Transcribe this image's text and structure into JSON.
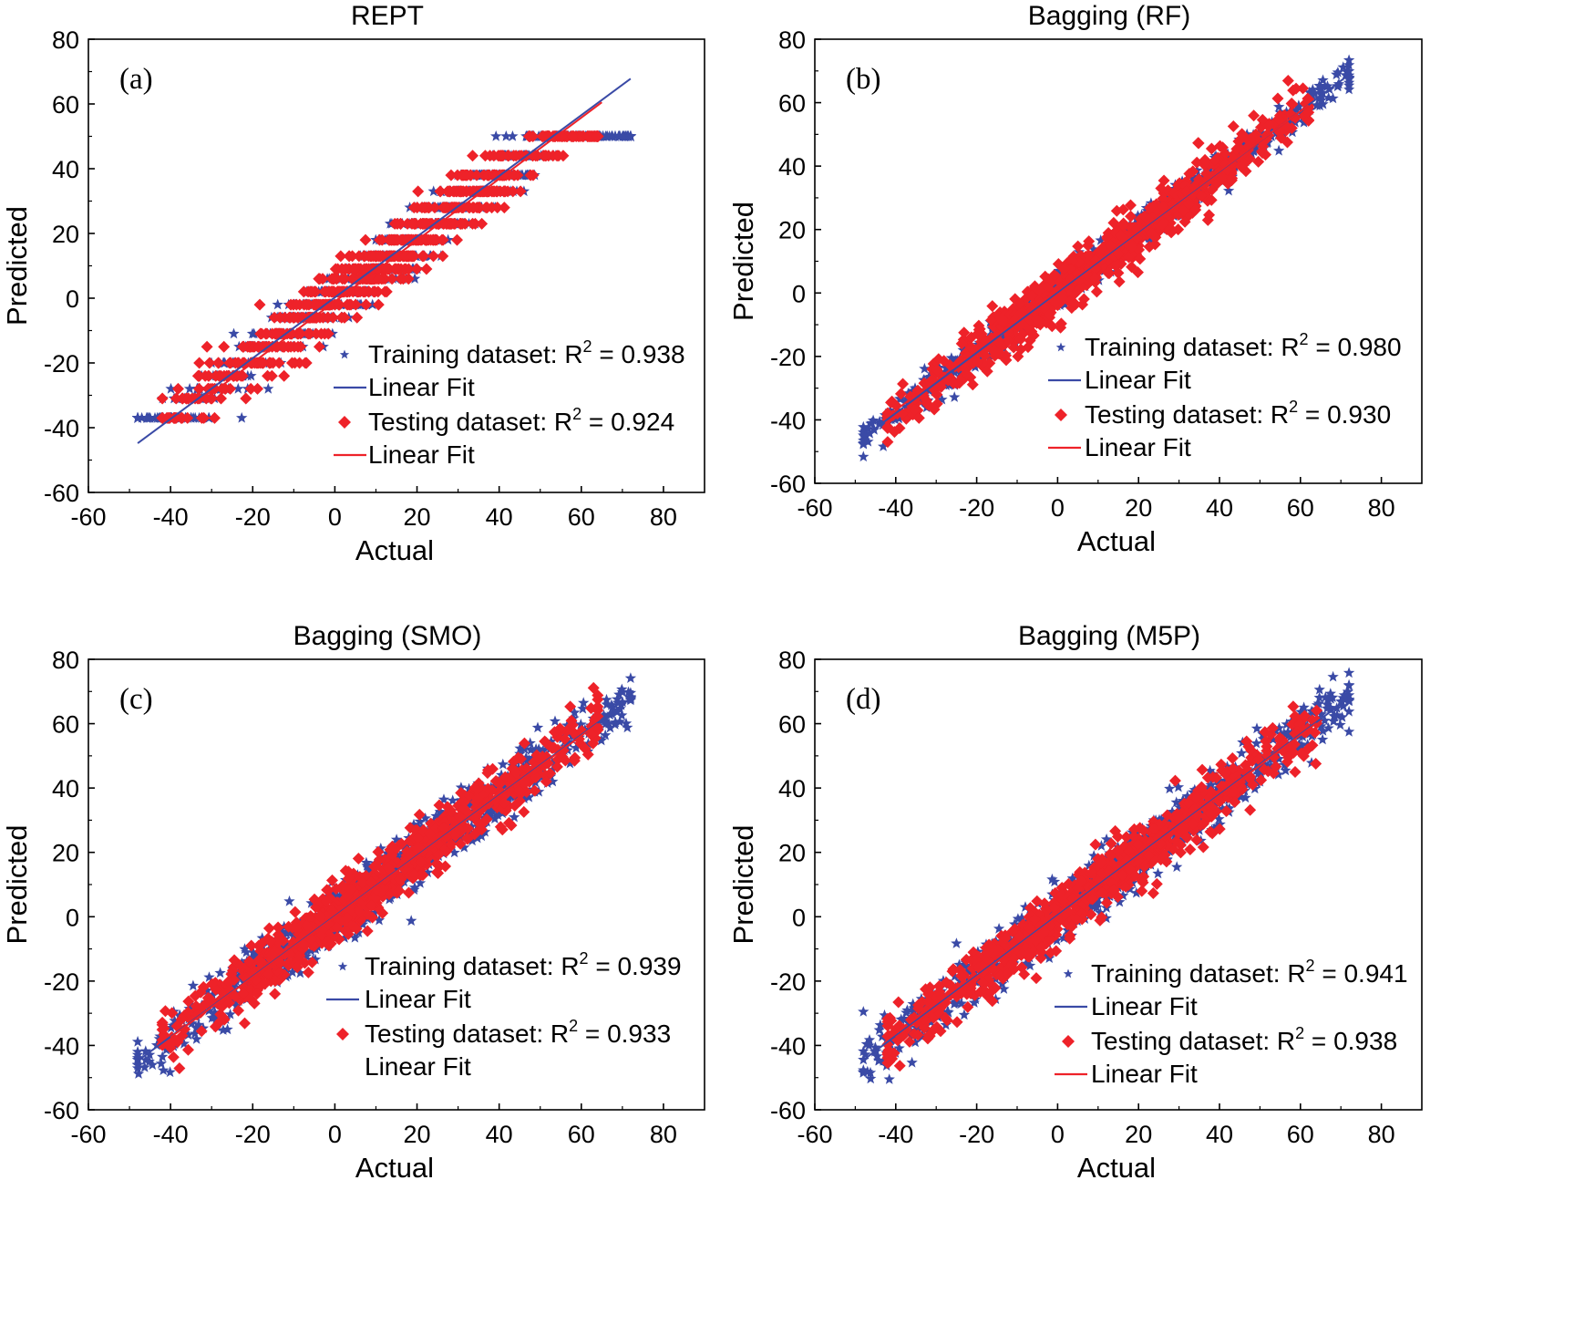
{
  "chart_data": [
    {
      "type": "scatter",
      "panel_label": "(a)",
      "title": "REPT",
      "xlabel": "Actual",
      "ylabel": "Predicted",
      "xlim": [
        -60,
        90
      ],
      "ylim": [
        -60,
        80
      ],
      "xticks": [
        -60,
        -40,
        -20,
        0,
        20,
        40,
        60,
        80
      ],
      "yticks": [
        -60,
        -40,
        -20,
        0,
        20,
        40,
        60,
        80
      ],
      "legend_position": "lower-right",
      "series": [
        {
          "name": "Training dataset",
          "r2_text": "R",
          "r2_exp": "2",
          "r2_value": " = 0.938",
          "marker": "star",
          "color": "#3a4aa6",
          "x_range": [
            -48,
            72
          ],
          "spread": 4.5,
          "quantized": true
        },
        {
          "name": "Linear Fit",
          "type": "line",
          "color": "#3a4aa6",
          "x": [
            -48,
            72
          ],
          "y": [
            -44.8,
            67.8
          ]
        },
        {
          "name": "Testing dataset",
          "r2_text": "R",
          "r2_exp": "2",
          "r2_value": " = 0.924",
          "marker": "diamond",
          "color": "#ee2229",
          "x_range": [
            -42,
            64
          ],
          "spread": 4.5,
          "quantized": true
        },
        {
          "name": "Linear Fit",
          "type": "line",
          "color": "#ee2229",
          "x": [
            -30,
            65
          ],
          "y": [
            -29.4,
            60.5
          ]
        }
      ]
    },
    {
      "type": "scatter",
      "panel_label": "(b)",
      "title": "Bagging (RF)",
      "xlabel": "Actual",
      "ylabel": "Predicted",
      "xlim": [
        -60,
        90
      ],
      "ylim": [
        -60,
        80
      ],
      "xticks": [
        -60,
        -40,
        -20,
        0,
        20,
        40,
        60,
        80
      ],
      "yticks": [
        -60,
        -40,
        -20,
        0,
        20,
        40,
        60,
        80
      ],
      "legend_position": "lower-right",
      "series": [
        {
          "name": "Training dataset",
          "r2_text": "R",
          "r2_exp": "2",
          "r2_value": " = 0.980",
          "marker": "star",
          "color": "#3a4aa6",
          "x_range": [
            -48,
            72
          ],
          "spread": 2.5,
          "quantized": false
        },
        {
          "name": "Linear Fit",
          "type": "line",
          "color": "#3a4aa6",
          "x": [
            -48,
            72
          ],
          "y": [
            -45.5,
            68.8
          ]
        },
        {
          "name": "Testing dataset",
          "r2_text": "R",
          "r2_exp": "2",
          "r2_value": " = 0.930",
          "marker": "diamond",
          "color": "#ee2229",
          "x_range": [
            -42,
            62
          ],
          "spread": 4.0,
          "quantized": false
        },
        {
          "name": "Linear Fit",
          "type": "line",
          "color": "#ee2229",
          "x": [
            -40,
            62
          ],
          "y": [
            -36.9,
            59.2
          ]
        }
      ]
    },
    {
      "type": "scatter",
      "panel_label": "(c)",
      "title": "Bagging (SMO)",
      "xlabel": "Actual",
      "ylabel": "Predicted",
      "xlim": [
        -60,
        90
      ],
      "ylim": [
        -60,
        80
      ],
      "xticks": [
        -60,
        -40,
        -20,
        0,
        20,
        40,
        60,
        80
      ],
      "yticks": [
        -60,
        -40,
        -20,
        0,
        20,
        40,
        60,
        80
      ],
      "legend_position": "lower-right",
      "series": [
        {
          "name": "Training dataset",
          "r2_text": "R",
          "r2_exp": "2",
          "r2_value": " = 0.939",
          "marker": "star",
          "color": "#3a4aa6",
          "x_range": [
            -48,
            72
          ],
          "spread": 4.5,
          "quantized": false
        },
        {
          "name": "Linear Fit",
          "type": "line",
          "color": "#3a4aa6",
          "x": [
            -48,
            72
          ],
          "y": [
            -44.8,
            67.8
          ]
        },
        {
          "name": "Testing dataset",
          "r2_text": "R",
          "r2_exp": "2",
          "r2_value": " = 0.933",
          "marker": "diamond",
          "color": "#ee2229",
          "x_range": [
            -42,
            64
          ],
          "spread": 4.5,
          "quantized": false
        },
        {
          "name": "Linear Fit",
          "type": "line",
          "color": "#ee2229",
          "x": [
            -40,
            64
          ],
          "y": [
            -37.5,
            60.0
          ]
        }
      ]
    },
    {
      "type": "scatter",
      "panel_label": "(d)",
      "title": "Bagging (M5P)",
      "xlabel": "Actual",
      "ylabel": "Predicted",
      "xlim": [
        -60,
        90
      ],
      "ylim": [
        -60,
        80
      ],
      "xticks": [
        -60,
        -40,
        -20,
        0,
        20,
        40,
        60,
        80
      ],
      "yticks": [
        -60,
        -40,
        -20,
        0,
        20,
        40,
        60,
        80
      ],
      "legend_position": "lower-right",
      "series": [
        {
          "name": "Training dataset",
          "r2_text": "R",
          "r2_exp": "2",
          "r2_value": " = 0.941",
          "marker": "star",
          "color": "#3a4aa6",
          "x_range": [
            -48,
            72
          ],
          "spread": 4.5,
          "quantized": false
        },
        {
          "name": "Linear Fit",
          "type": "line",
          "color": "#3a4aa6",
          "x": [
            -48,
            72
          ],
          "y": [
            -44.5,
            68.0
          ]
        },
        {
          "name": "Testing dataset",
          "r2_text": "R",
          "r2_exp": "2",
          "r2_value": " = 0.938",
          "marker": "diamond",
          "color": "#ee2229",
          "x_range": [
            -42,
            64
          ],
          "spread": 4.5,
          "quantized": false
        },
        {
          "name": "Linear Fit",
          "type": "line",
          "color": "#ee2229",
          "x": [
            -40,
            64
          ],
          "y": [
            -37.5,
            60.2
          ]
        }
      ]
    }
  ]
}
